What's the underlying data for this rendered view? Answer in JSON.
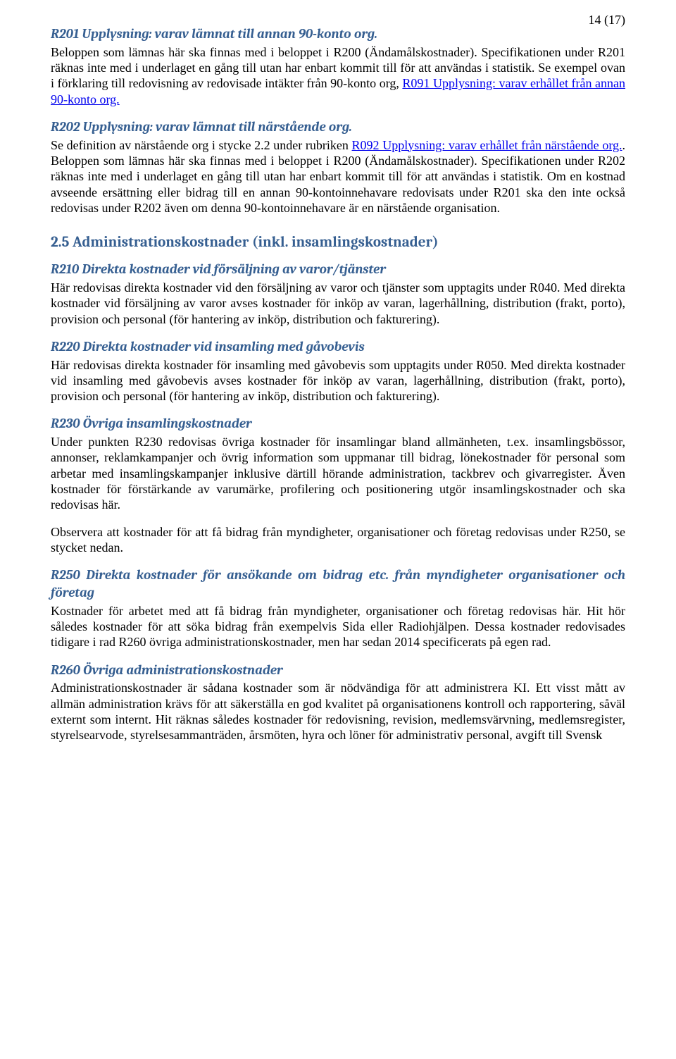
{
  "page_number": "14 (17)",
  "block1": {
    "heading": "R201 Upplysning: varav lämnat till annan 90-konto org.",
    "text_before_link": "Beloppen som lämnas här ska finnas med i beloppet i R200 (Ändamålskostnader). Specifikationen under R201 räknas inte med i underlaget en gång till utan har enbart kommit till för att användas i statistik. Se exempel ovan i förklaring till redovisning av redovisade intäkter från 90-konto org, ",
    "link": "R091 Upplysning: varav erhållet från annan 90-konto org."
  },
  "block2": {
    "heading": "R202 Upplysning: varav lämnat till närstående org.",
    "text_before_link": "Se definition av närstående org i stycke 2.2 under rubriken ",
    "link": "R092 Upplysning: varav erhållet från närstående org.",
    "text_after_link": ". Beloppen som lämnas här ska finnas med i beloppet i R200 (Ändamålskostnader). Specifikationen under R202 räknas inte med i underlaget en gång till utan har enbart kommit till för att användas i statistik. Om en kostnad avseende ersättning eller bidrag till en annan 90-kontoinnehavare redovisats under R201 ska den inte också redovisas under R202 även om denna 90-kontoinnehavare är en närstående organisation."
  },
  "section25": {
    "title": "2.5 Administrationskostnader (inkl. insamlingskostnader)",
    "r210": {
      "heading": "R210 Direkta kostnader vid försäljning av varor/tjänster",
      "text": "Här redovisas direkta kostnader vid den försäljning av varor och tjänster som upptagits under R040. Med direkta kostnader vid försäljning av varor avses kostnader för inköp av varan, lagerhållning, distribution (frakt, porto), provision och personal (för hantering av inköp, distribution och fakturering)."
    },
    "r220": {
      "heading": "R220 Direkta kostnader vid insamling med gåvobevis",
      "text": "Här redovisas direkta kostnader för insamling med gåvobevis som upptagits under R050. Med direkta kostnader vid insamling med gåvobevis avses kostnader för inköp av varan, lagerhållning, distribution (frakt, porto), provision och personal (för hantering av inköp, distribution och fakturering)."
    },
    "r230": {
      "heading": "R230 Övriga insamlingskostnader",
      "text": "Under punkten R230 redovisas övriga kostnader för insamlingar bland allmänheten, t.ex. insamlingsbössor, annonser, reklamkampanjer och övrig information som uppmanar till bidrag, lönekostnader för personal som arbetar med insamlingskampanjer inklusive därtill hörande administration, tackbrev och givarregister. Även kostnader för förstärkande av varumärke, profilering och positionering utgör insamlingskostnader och ska redovisas här.",
      "text2": "Observera att kostnader för att få bidrag från myndigheter, organisationer och företag redovisas under R250, se stycket nedan."
    },
    "r250": {
      "heading": "R250 Direkta kostnader för ansökande om bidrag etc. från myndigheter organisationer och företag",
      "text": "Kostnader för arbetet med att få bidrag från myndigheter, organisationer och företag redovisas här. Hit hör således kostnader för att söka bidrag från exempelvis Sida eller Radiohjälpen. Dessa kostnader redovisades tidigare i rad R260 övriga administrationskostnader, men har sedan 2014 specificerats på egen rad."
    },
    "r260": {
      "heading": "R260 Övriga administrationskostnader",
      "text": "Administrationskostnader är sådana kostnader som är nödvändiga för att administrera KI. Ett visst mått av allmän administration krävs för att säkerställa en god kvalitet på organisationens kontroll och rapportering, såväl externt som internt. Hit räknas således kostnader för redovisning, revision, medlemsvärvning, medlemsregister, styrelsearvode, styrelsesammanträden, årsmöten, hyra och löner för administrativ personal, avgift till Svensk"
    }
  }
}
